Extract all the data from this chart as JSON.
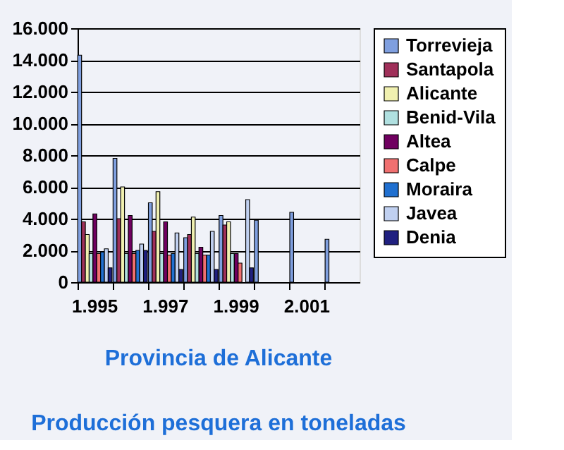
{
  "chart_data": {
    "type": "bar",
    "title": "Provincia de Alicante",
    "subtitle": "Producción pesquera en toneladas",
    "categories": [
      "1.995",
      null,
      "1.997",
      null,
      "1.999",
      null,
      "2.001",
      null
    ],
    "series": [
      {
        "name": "Torrevieja",
        "color": "#7f9fdf",
        "values": [
          14300,
          7800,
          5000,
          2800,
          4200,
          3900,
          4400,
          2700
        ]
      },
      {
        "name": "Santapola",
        "color": "#a0305a",
        "values": [
          3800,
          4000,
          3200,
          3000,
          3600,
          null,
          null,
          null
        ]
      },
      {
        "name": "Alicante",
        "color": "#f0f0b0",
        "values": [
          3000,
          6000,
          5700,
          4100,
          3800,
          null,
          null,
          null
        ]
      },
      {
        "name": "Benid-Vila",
        "color": "#b0e0e0",
        "values": [
          1800,
          1800,
          1800,
          1800,
          1800,
          null,
          null,
          null
        ]
      },
      {
        "name": "Altea",
        "color": "#700060",
        "values": [
          4300,
          4200,
          3800,
          2200,
          1800,
          null,
          null,
          null
        ]
      },
      {
        "name": "Calpe",
        "color": "#f07070",
        "values": [
          1800,
          1800,
          1700,
          1700,
          1200,
          null,
          null,
          null
        ]
      },
      {
        "name": "Moraira",
        "color": "#2070d0",
        "values": [
          1900,
          2000,
          1800,
          1700,
          null,
          null,
          null,
          null
        ]
      },
      {
        "name": "Javea",
        "color": "#c0d0f0",
        "values": [
          2100,
          2400,
          3100,
          3200,
          5200,
          null,
          null,
          null
        ]
      },
      {
        "name": "Denia",
        "color": "#202080",
        "values": [
          900,
          2000,
          800,
          800,
          900,
          null,
          null,
          null
        ]
      }
    ],
    "ylim": [
      0,
      16000
    ],
    "yticks": [
      0,
      {
        "value": 2000,
        "label": "2.000"
      },
      {
        "value": 4000,
        "label": "4.000"
      },
      {
        "value": 6000,
        "label": "6.000"
      },
      {
        "value": 8000,
        "label": "8.000"
      },
      {
        "value": 10000,
        "label": "10.000"
      },
      {
        "value": 12000,
        "label": "12.000"
      },
      {
        "value": 14000,
        "label": "14.000"
      },
      {
        "value": 16000,
        "label": "16.000"
      }
    ],
    "grid": "y",
    "legend": "right"
  }
}
